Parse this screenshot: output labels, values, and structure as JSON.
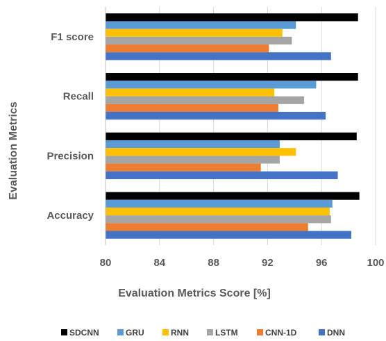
{
  "chart_data": {
    "type": "bar",
    "orientation": "horizontal",
    "title": "",
    "xlabel": "Evaluation Metrics Score [%]",
    "ylabel": "Evaluation Metrics",
    "xlim": [
      80,
      100
    ],
    "xticks": [
      80,
      84,
      88,
      92,
      96,
      100
    ],
    "grid": true,
    "legend_position": "bottom",
    "categories": [
      "F1 score",
      "Recall",
      "Precision",
      "Accuracy"
    ],
    "series": [
      {
        "name": "SDCNN",
        "color": "#000000",
        "values": [
          98.7,
          98.7,
          98.6,
          98.8
        ]
      },
      {
        "name": "GRU",
        "color": "#5B9BD5",
        "values": [
          94.1,
          95.6,
          92.9,
          96.8
        ]
      },
      {
        "name": "RNN",
        "color": "#FFC000",
        "values": [
          93.1,
          92.5,
          94.1,
          96.6
        ]
      },
      {
        "name": "LSTM",
        "color": "#A5A5A5",
        "values": [
          93.8,
          94.7,
          92.9,
          96.7
        ]
      },
      {
        "name": "CNN-1D",
        "color": "#ED7D31",
        "values": [
          92.1,
          92.8,
          91.5,
          95.0
        ]
      },
      {
        "name": "DNN",
        "color": "#4472C4",
        "values": [
          96.7,
          96.3,
          97.2,
          98.2
        ]
      }
    ]
  }
}
